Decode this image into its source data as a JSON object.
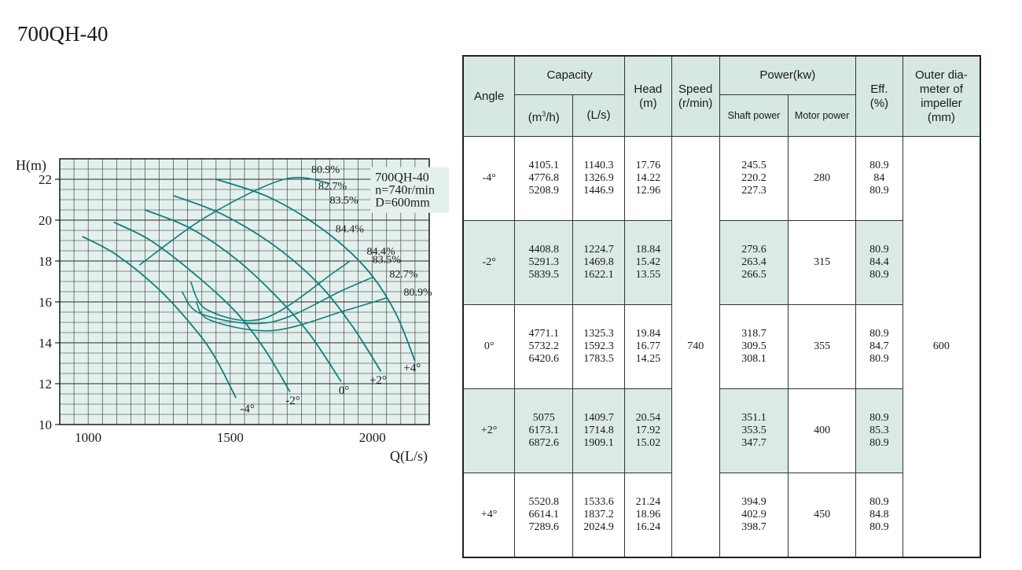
{
  "page": {
    "title": "700QH-40"
  },
  "chart_data": {
    "type": "line",
    "ylabel": "H(m)",
    "xlabel": "Q(L/s)",
    "xlim": [
      900,
      2200
    ],
    "ylim": [
      10,
      23
    ],
    "x_ticks": [
      1000,
      1500,
      2000
    ],
    "y_ticks": [
      10,
      12,
      14,
      16,
      18,
      20,
      22
    ],
    "grid": true,
    "background": "#e3f0ee",
    "curve_color": "#0f7f7c",
    "info_box": [
      "700QH-40",
      "n=740r/min",
      "D=600mm"
    ],
    "series": [
      {
        "name": "-4°",
        "label_at": [
          1560,
          10.6
        ],
        "points": [
          [
            980,
            19.2
          ],
          [
            1100,
            18.3
          ],
          [
            1250,
            16.6
          ],
          [
            1380,
            14.6
          ],
          [
            1450,
            13.2
          ],
          [
            1520,
            11.3
          ]
        ]
      },
      {
        "name": "-2°",
        "label_at": [
          1720,
          11.0
        ],
        "points": [
          [
            1090,
            19.9
          ],
          [
            1220,
            19.0
          ],
          [
            1380,
            17.3
          ],
          [
            1520,
            15.5
          ],
          [
            1620,
            13.7
          ],
          [
            1710,
            11.6
          ]
        ]
      },
      {
        "name": "0°",
        "label_at": [
          1900,
          11.5
        ],
        "points": [
          [
            1200,
            20.5
          ],
          [
            1360,
            19.6
          ],
          [
            1520,
            18.1
          ],
          [
            1660,
            16.3
          ],
          [
            1780,
            14.4
          ],
          [
            1890,
            12.1
          ]
        ]
      },
      {
        "name": "+2°",
        "label_at": [
          2020,
          12.0
        ],
        "points": [
          [
            1300,
            21.2
          ],
          [
            1470,
            20.3
          ],
          [
            1650,
            18.8
          ],
          [
            1810,
            16.9
          ],
          [
            1930,
            14.8
          ],
          [
            2030,
            12.6
          ]
        ]
      },
      {
        "name": "+4°",
        "label_at": [
          2140,
          12.6
        ],
        "points": [
          [
            1450,
            22.0
          ],
          [
            1640,
            21.1
          ],
          [
            1830,
            19.5
          ],
          [
            1980,
            17.6
          ],
          [
            2080,
            15.5
          ],
          [
            2150,
            13.1
          ]
        ]
      }
    ],
    "efficiency_curves": [
      {
        "name": "80.9%",
        "label_at": [
          1785,
          22.3
        ],
        "points": [
          [
            1180,
            17.8
          ],
          [
            1420,
            20.2
          ],
          [
            1690,
            22.0
          ],
          [
            1850,
            21.8
          ]
        ]
      },
      {
        "name": "82.7%",
        "label_at": [
          1810,
          21.5
        ],
        "points": [
          [
            1380,
            16.0
          ],
          [
            1430,
            15.1
          ],
          [
            1650,
            14.6
          ],
          [
            1910,
            15.6
          ],
          [
            2050,
            16.2
          ]
        ]
      },
      {
        "name": "83.5%",
        "label_at": [
          1850,
          20.8
        ],
        "points": [
          [
            1330,
            16.5
          ],
          [
            1400,
            15.4
          ],
          [
            1640,
            15.0
          ],
          [
            1900,
            16.6
          ],
          [
            2000,
            17.2
          ]
        ]
      },
      {
        "name": "84.4%",
        "label_at": [
          1870,
          19.4
        ],
        "points": [
          [
            1360,
            17.0
          ],
          [
            1420,
            15.6
          ],
          [
            1620,
            15.2
          ],
          [
            1870,
            17.5
          ],
          [
            1920,
            18.0
          ]
        ]
      }
    ],
    "efficiency_labels_right": [
      {
        "text": "84.4%",
        "at": [
          1980,
          18.3
        ]
      },
      {
        "text": "83.5%",
        "at": [
          2000,
          17.9
        ]
      },
      {
        "text": "82.7%",
        "at": [
          2060,
          17.2
        ]
      },
      {
        "text": "80.9%",
        "at": [
          2110,
          16.3
        ]
      }
    ]
  },
  "table": {
    "headers": {
      "angle": "Angle",
      "capacity": "Capacity",
      "capacity_m3h_base": "(m",
      "capacity_m3h_sup": "3",
      "capacity_m3h_tail": "/h)",
      "capacity_ls": "(L/s)",
      "head": "Head",
      "head_unit": "(m)",
      "speed": "Speed",
      "speed_unit": "(r/min)",
      "power": "Power(kw)",
      "shaft_power": "Shaft power",
      "motor_power": "Motor power",
      "eff": "Eff.",
      "eff_unit": "(%)",
      "outer_dia_1": "Outer dia-",
      "outer_dia_2": "meter of",
      "outer_dia_3": "impeller",
      "outer_dia_4": "(mm)"
    },
    "speed": "740",
    "outer_diameter": "600",
    "rows": [
      {
        "angle": "-4°",
        "cap_m3h": [
          "4105.1",
          "4776.8",
          "5208.9"
        ],
        "cap_ls": [
          "1140.3",
          "1326.9",
          "1446.9"
        ],
        "head": [
          "17.76",
          "14.22",
          "12.96"
        ],
        "shaft": [
          "245.5",
          "220.2",
          "227.3"
        ],
        "motor": "280",
        "eff": [
          "80.9",
          "84",
          "80.9"
        ]
      },
      {
        "angle": "-2°",
        "cap_m3h": [
          "4408.8",
          "5291.3",
          "5839.5"
        ],
        "cap_ls": [
          "1224.7",
          "1469.8",
          "1622.1"
        ],
        "head": [
          "18.84",
          "15.42",
          "13.55"
        ],
        "shaft": [
          "279.6",
          "263.4",
          "266.5"
        ],
        "motor": "315",
        "eff": [
          "80.9",
          "84.4",
          "80.9"
        ]
      },
      {
        "angle": "0°",
        "cap_m3h": [
          "4771.1",
          "5732.2",
          "6420.6"
        ],
        "cap_ls": [
          "1325.3",
          "1592.3",
          "1783.5"
        ],
        "head": [
          "19.84",
          "16.77",
          "14.25"
        ],
        "shaft": [
          "318.7",
          "309.5",
          "308.1"
        ],
        "motor": "355",
        "eff": [
          "80.9",
          "84.7",
          "80.9"
        ]
      },
      {
        "angle": "+2°",
        "cap_m3h": [
          "5075",
          "6173.1",
          "6872.6"
        ],
        "cap_ls": [
          "1409.7",
          "1714.8",
          "1909.1"
        ],
        "head": [
          "20.54",
          "17.92",
          "15.02"
        ],
        "shaft": [
          "351.1",
          "353.5",
          "347.7"
        ],
        "motor": "400",
        "eff": [
          "80.9",
          "85.3",
          "80.9"
        ]
      },
      {
        "angle": "+4°",
        "cap_m3h": [
          "5520.8",
          "6614.1",
          "7289.6"
        ],
        "cap_ls": [
          "1533.6",
          "1837.2",
          "2024.9"
        ],
        "head": [
          "21.24",
          "18.96",
          "16.24"
        ],
        "shaft": [
          "394.9",
          "402.9",
          "398.7"
        ],
        "motor": "450",
        "eff": [
          "80.9",
          "84.8",
          "80.9"
        ]
      }
    ]
  }
}
